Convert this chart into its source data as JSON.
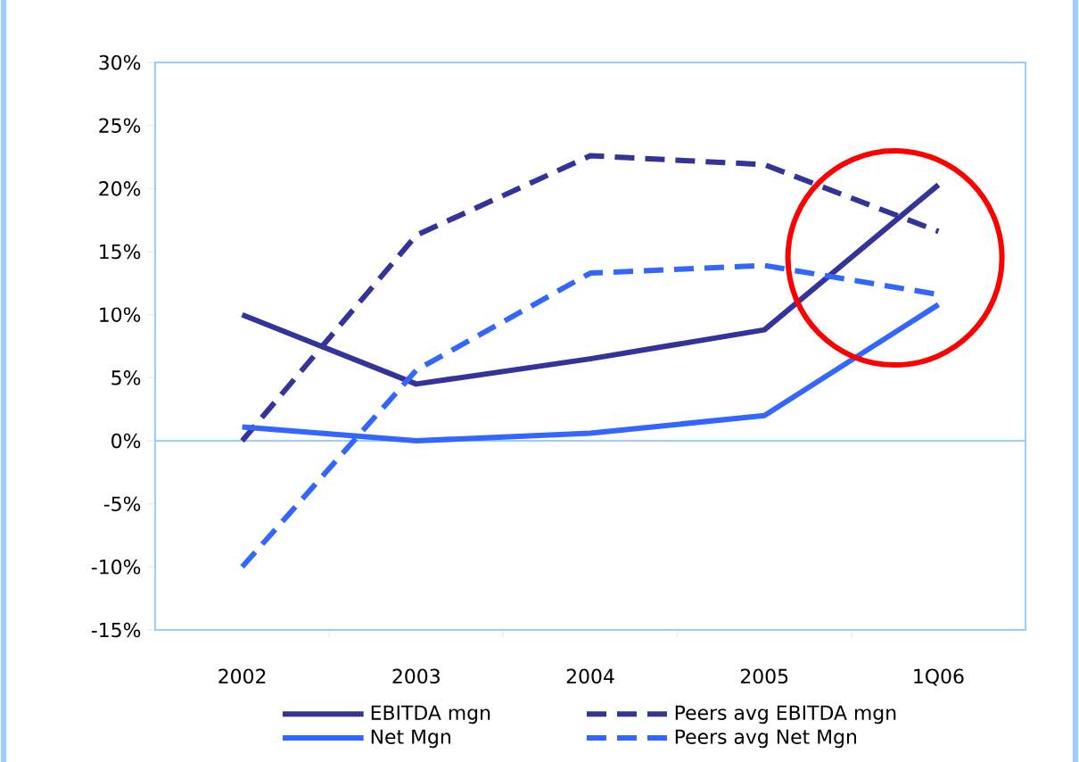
{
  "chart_data": {
    "type": "line",
    "categories": [
      "2002",
      "2003",
      "2004",
      "2005",
      "1Q06"
    ],
    "ylim": [
      -15,
      30
    ],
    "yticks": [
      {
        "value": -15,
        "label": "-15%"
      },
      {
        "value": -10,
        "label": "-10%"
      },
      {
        "value": -5,
        "label": "-5%"
      },
      {
        "value": 0,
        "label": "0%"
      },
      {
        "value": 5,
        "label": "5%"
      },
      {
        "value": 10,
        "label": "10%"
      },
      {
        "value": 15,
        "label": "15%"
      },
      {
        "value": 20,
        "label": "20%"
      },
      {
        "value": 25,
        "label": "25%"
      },
      {
        "value": 30,
        "label": "30%"
      }
    ],
    "legend": "bottom",
    "ref_lines": [
      {
        "axis": "y",
        "value": 0,
        "color": "#99ccff"
      }
    ],
    "series": [
      {
        "name": "EBITDA mgn",
        "color": "#333399",
        "line_style": "solid",
        "values": [
          10,
          4.5,
          6.5,
          8.8,
          20.3
        ]
      },
      {
        "name": "Peers avg EBITDA mgn",
        "color": "#333399",
        "line_style": "dashed",
        "values": [
          0,
          16.3,
          22.6,
          21.9,
          16.6
        ]
      },
      {
        "name": "Net Mgn",
        "color": "#3366ff",
        "line_style": "solid",
        "values": [
          1.1,
          0,
          0.6,
          2,
          10.8
        ]
      },
      {
        "name": "Peers avg Net Mgn",
        "color": "#3366ff",
        "line_style": "dashed",
        "values": [
          -10,
          5.6,
          13.3,
          13.9,
          11.6
        ]
      }
    ]
  }
}
